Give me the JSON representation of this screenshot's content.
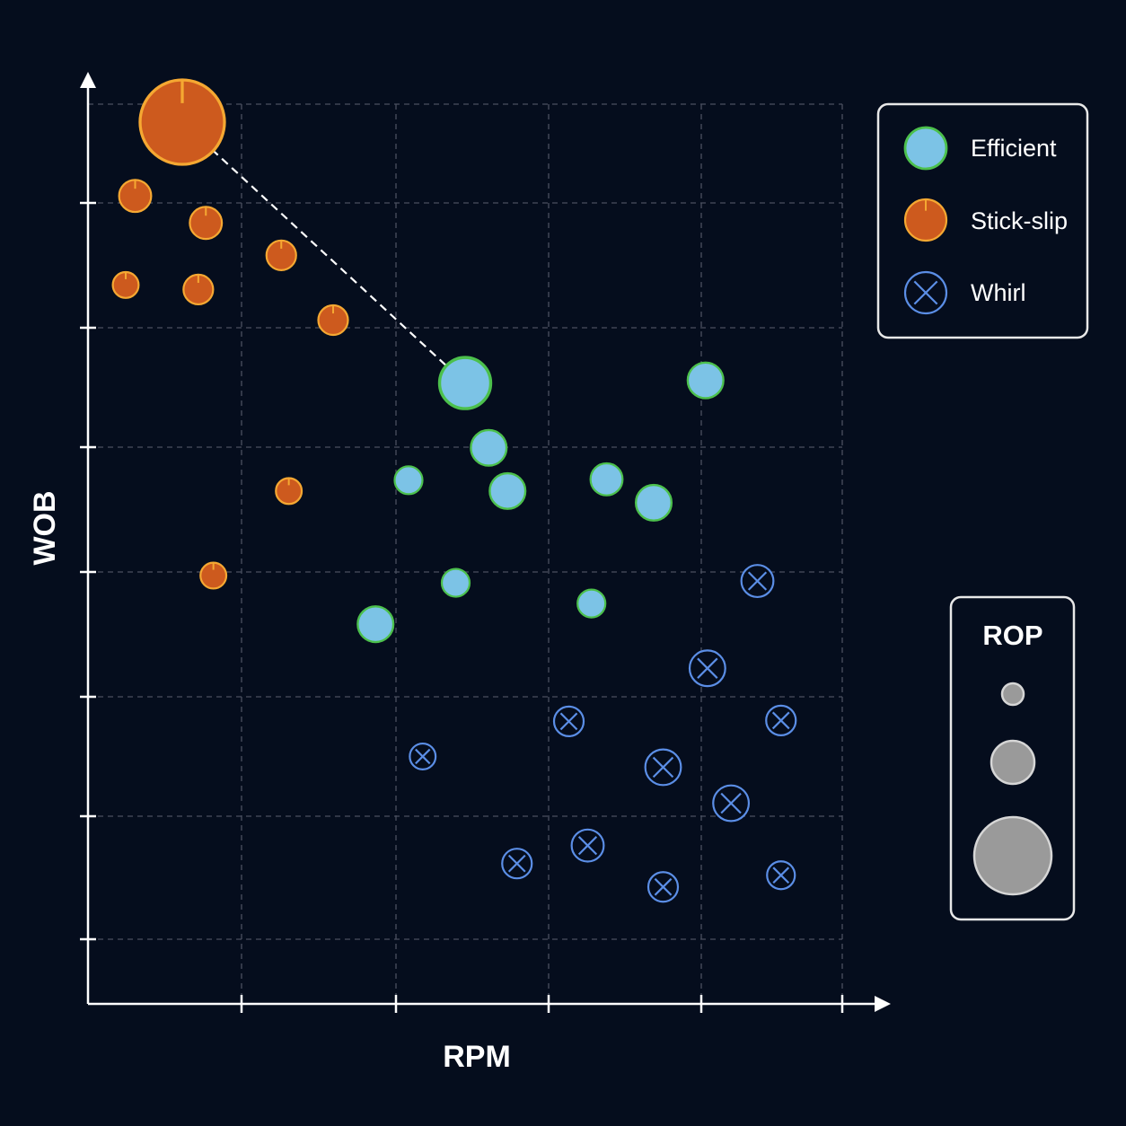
{
  "chart_data": {
    "type": "scatter",
    "title": "",
    "xlabel": "RPM",
    "ylabel": "WOB",
    "xlim": [
      0,
      8
    ],
    "ylim": [
      0,
      10
    ],
    "grid": true,
    "legend_position": "top-right",
    "size_legend": {
      "title": "ROP",
      "levels": [
        1,
        4,
        16
      ]
    },
    "series": [
      {
        "name": "Efficient",
        "marker": "circle",
        "fill": "#7cc3e6",
        "stroke": "#4cc04c",
        "points": [
          {
            "x": 4.0,
            "y": 6.9,
            "size": 5
          },
          {
            "x": 4.25,
            "y": 6.18,
            "size": 2
          },
          {
            "x": 6.55,
            "y": 6.93,
            "size": 2
          },
          {
            "x": 3.4,
            "y": 5.82,
            "size": 1
          },
          {
            "x": 4.45,
            "y": 5.7,
            "size": 2
          },
          {
            "x": 5.5,
            "y": 5.83,
            "size": 1.5
          },
          {
            "x": 6.0,
            "y": 5.57,
            "size": 2
          },
          {
            "x": 3.9,
            "y": 4.68,
            "size": 1
          },
          {
            "x": 5.34,
            "y": 4.45,
            "size": 1
          },
          {
            "x": 3.05,
            "y": 4.22,
            "size": 2
          }
        ]
      },
      {
        "name": "Stick-slip",
        "marker": "circle-tick",
        "fill": "#cd5a1e",
        "stroke": "#f5a832",
        "points": [
          {
            "x": 1.0,
            "y": 9.8,
            "size": 16
          },
          {
            "x": 0.5,
            "y": 8.98,
            "size": 1.5
          },
          {
            "x": 1.25,
            "y": 8.68,
            "size": 1.5
          },
          {
            "x": 2.05,
            "y": 8.32,
            "size": 1.2
          },
          {
            "x": 0.4,
            "y": 7.99,
            "size": 0.8
          },
          {
            "x": 1.17,
            "y": 7.94,
            "size": 1.2
          },
          {
            "x": 2.6,
            "y": 7.6,
            "size": 1.2
          },
          {
            "x": 2.13,
            "y": 5.7,
            "size": 0.8
          },
          {
            "x": 1.33,
            "y": 4.76,
            "size": 0.8
          }
        ]
      },
      {
        "name": "Whirl",
        "marker": "circle-x",
        "fill": "#050d1d",
        "stroke": "#5b8ee6",
        "points": [
          {
            "x": 7.1,
            "y": 4.7,
            "size": 1.5
          },
          {
            "x": 6.57,
            "y": 3.73,
            "size": 2
          },
          {
            "x": 3.55,
            "y": 2.75,
            "size": 0.8
          },
          {
            "x": 5.1,
            "y": 3.14,
            "size": 1.2
          },
          {
            "x": 7.35,
            "y": 3.15,
            "size": 1.2
          },
          {
            "x": 6.1,
            "y": 2.63,
            "size": 2
          },
          {
            "x": 6.82,
            "y": 2.23,
            "size": 2
          },
          {
            "x": 4.55,
            "y": 1.56,
            "size": 1.2
          },
          {
            "x": 5.3,
            "y": 1.76,
            "size": 1.5
          },
          {
            "x": 6.1,
            "y": 1.3,
            "size": 1.2
          },
          {
            "x": 7.35,
            "y": 1.43,
            "size": 1
          }
        ]
      }
    ],
    "annotations": [
      {
        "type": "dashed-line",
        "from": {
          "x": 1.0,
          "y": 9.8
        },
        "to": {
          "x": 4.0,
          "y": 6.9
        }
      }
    ]
  },
  "colors": {
    "background": "#050d1d",
    "axis": "#ffffff",
    "grid": "#4a5060",
    "legend_border": "#e8e8e8",
    "rop_fill": "#9a9a9a",
    "rop_stroke": "#d6d6d6"
  }
}
